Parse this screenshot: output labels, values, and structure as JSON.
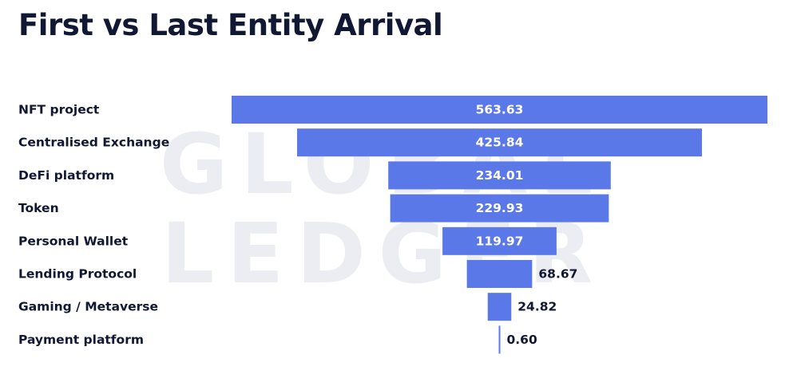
{
  "watermark": {
    "line1": "GLOBAL",
    "line2": "LEDGER"
  },
  "colors": {
    "bar": "#5a78e8",
    "title": "#111833",
    "watermark": "#ebedf2"
  },
  "chart_data": {
    "type": "bar",
    "orientation": "horizontal",
    "layout": "funnel-centered",
    "title": "First vs Last Entity Arrival",
    "xlabel": "",
    "ylabel": "",
    "grid": false,
    "categories": [
      "NFT project",
      "Centralised Exchange",
      "DeFi platform",
      "Token",
      "Personal Wallet",
      "Lending Protocol",
      "Gaming / Metaverse",
      "Payment platform"
    ],
    "values": [
      563.63,
      425.84,
      234.01,
      229.93,
      119.97,
      68.67,
      24.82,
      0.6
    ],
    "value_labels": [
      "563.63",
      "425.84",
      "234.01",
      "229.93",
      "119.97",
      "68.67",
      "24.82",
      "0.60"
    ]
  }
}
